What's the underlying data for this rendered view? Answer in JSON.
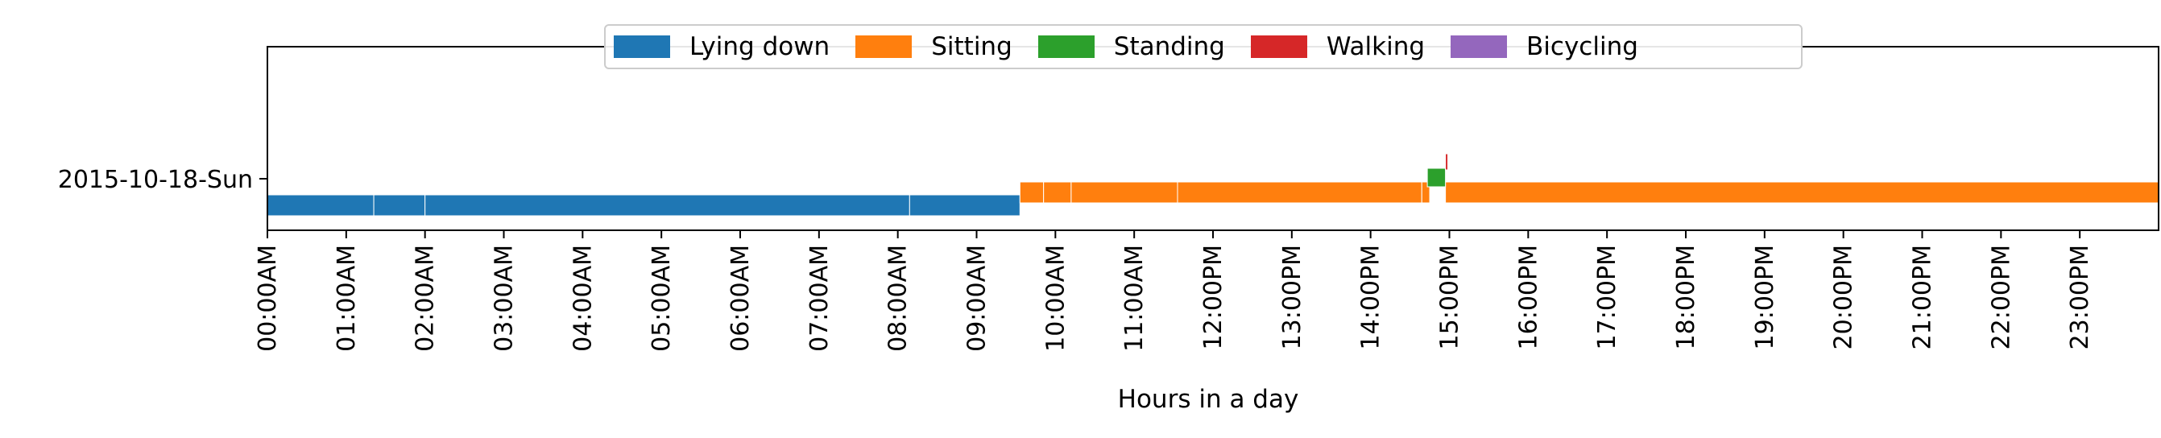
{
  "chart_data": {
    "type": "timeline",
    "title": "",
    "xlabel": "Hours in a day",
    "ylabel": "",
    "xlim": [
      0,
      24
    ],
    "categories": [
      "2015-10-18-Sun"
    ],
    "x_tick_labels": [
      "00:00AM",
      "01:00AM",
      "02:00AM",
      "03:00AM",
      "04:00AM",
      "05:00AM",
      "06:00AM",
      "07:00AM",
      "08:00AM",
      "09:00AM",
      "10:00AM",
      "11:00AM",
      "12:00PM",
      "13:00PM",
      "14:00PM",
      "15:00PM",
      "16:00PM",
      "17:00PM",
      "18:00PM",
      "19:00PM",
      "20:00PM",
      "21:00PM",
      "22:00PM",
      "23:00PM"
    ],
    "legend_position": "top-center",
    "series": [
      {
        "name": "Lying down",
        "color": "#1f77b4",
        "intervals": [
          [
            0.0,
            1.35
          ],
          [
            1.35,
            2.0
          ],
          [
            2.0,
            8.15
          ],
          [
            8.15,
            9.55
          ]
        ]
      },
      {
        "name": "Sitting",
        "color": "#ff7f0e",
        "intervals": [
          [
            9.55,
            9.85
          ],
          [
            9.85,
            10.2
          ],
          [
            10.2,
            11.55
          ],
          [
            11.55,
            14.65
          ],
          [
            14.65,
            14.75
          ],
          [
            14.95,
            24.0
          ]
        ]
      },
      {
        "name": "Standing",
        "color": "#2ca02c",
        "intervals": [
          [
            14.72,
            14.95
          ]
        ]
      },
      {
        "name": "Walking",
        "color": "#d62728",
        "intervals": [
          [
            14.95,
            14.98
          ]
        ]
      },
      {
        "name": "Bicycling",
        "color": "#9467bd",
        "intervals": []
      }
    ]
  }
}
